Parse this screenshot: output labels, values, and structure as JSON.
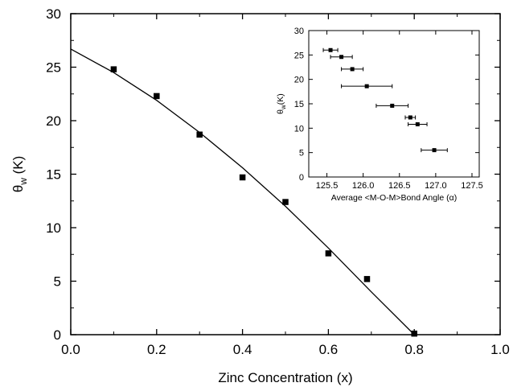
{
  "chart_data": [
    {
      "type": "scatter",
      "xlabel": "Zinc Concentration (x)",
      "ylabel": "θ",
      "ylabel_sub": "w",
      "ylabel_unit": " (K)",
      "xlim": [
        0.0,
        1.0
      ],
      "ylim": [
        0,
        30
      ],
      "xticks": [
        "0.0",
        "0.2",
        "0.4",
        "0.6",
        "0.8",
        "1.0"
      ],
      "yticks": [
        "0",
        "5",
        "10",
        "15",
        "20",
        "25",
        "30"
      ],
      "grid": false,
      "series": [
        {
          "marker": "square",
          "x": [
            0.1,
            0.2,
            0.3,
            0.4,
            0.5,
            0.6,
            0.69,
            0.8
          ],
          "y": [
            24.8,
            22.3,
            18.7,
            14.7,
            12.4,
            7.6,
            5.2,
            0.1
          ]
        },
        {
          "marker": "line",
          "x": [
            0.0,
            0.1,
            0.2,
            0.3,
            0.4,
            0.5,
            0.6,
            0.7,
            0.8
          ],
          "y": [
            26.7,
            24.5,
            21.9,
            18.9,
            15.6,
            12.0,
            8.1,
            4.0,
            0.0
          ]
        }
      ],
      "colors": {
        "axis": "#000000",
        "marker": "#000000",
        "background": "#ffffff"
      }
    },
    {
      "type": "scatter",
      "inset": true,
      "xlabel": "Average <M-O-M>Bond Angle (α)",
      "ylabel": "θ",
      "ylabel_sub": "w",
      "ylabel_unit": "(K)",
      "xlim": [
        125.25,
        127.6
      ],
      "ylim": [
        0,
        30
      ],
      "xticks": [
        "125.5",
        "126.0",
        "126.5",
        "127.0",
        "127.5"
      ],
      "xtick_values": [
        125.5,
        126.0,
        126.5,
        127.0,
        127.5
      ],
      "yticks": [
        "0",
        "5",
        "10",
        "15",
        "20",
        "25",
        "30"
      ],
      "grid": false,
      "series": [
        {
          "marker": "square-with-xerror",
          "x": [
            125.55,
            125.7,
            125.85,
            126.05,
            126.4,
            126.65,
            126.75,
            126.98
          ],
          "y": [
            26.0,
            24.6,
            22.1,
            18.6,
            14.6,
            12.2,
            10.8,
            5.5
          ],
          "xerr": [
            0.1,
            0.15,
            0.15,
            0.35,
            0.22,
            0.07,
            0.13,
            0.18
          ]
        }
      ]
    }
  ]
}
